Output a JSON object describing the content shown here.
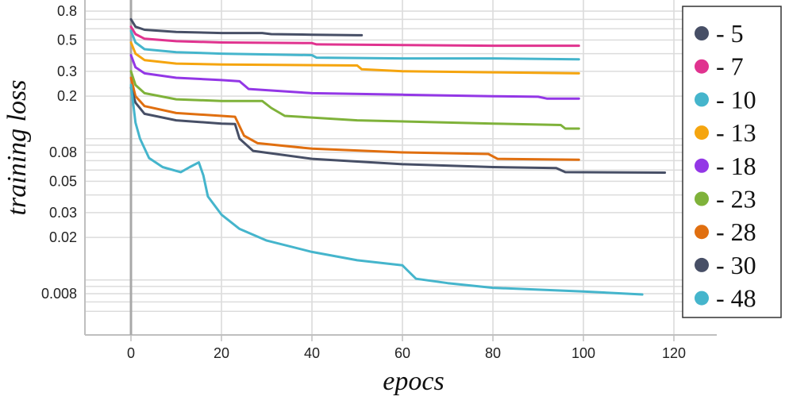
{
  "chart_data": {
    "type": "line",
    "title": "",
    "xlabel": "epocs",
    "ylabel": "training loss",
    "xlim": [
      -10,
      128
    ],
    "ylim": [
      0.005,
      0.85
    ],
    "y_scale": "log",
    "grid": true,
    "legend_placement": "right",
    "x_ticks": [
      {
        "value": 0,
        "label": "0"
      },
      {
        "value": 20,
        "label": "20"
      },
      {
        "value": 40,
        "label": "40"
      },
      {
        "value": 60,
        "label": "60"
      },
      {
        "value": 80,
        "label": "80"
      },
      {
        "value": 100,
        "label": "100"
      },
      {
        "value": 120,
        "label": "120"
      }
    ],
    "y_ticks": [
      {
        "value": 0.8,
        "label": "0.8"
      },
      {
        "value": 0.5,
        "label": "0.5"
      },
      {
        "value": 0.3,
        "label": "0.3"
      },
      {
        "value": 0.2,
        "label": "0.2"
      },
      {
        "value": 0.08,
        "label": "0.08"
      },
      {
        "value": 0.05,
        "label": "0.05"
      },
      {
        "value": 0.03,
        "label": "0.03"
      },
      {
        "value": 0.02,
        "label": "0.02"
      },
      {
        "value": 0.008,
        "label": "0.008"
      }
    ],
    "series": [
      {
        "name": "- 5",
        "color": "#474f66",
        "points": [
          [
            0,
            0.7
          ],
          [
            1,
            0.62
          ],
          [
            3,
            0.59
          ],
          [
            10,
            0.57
          ],
          [
            20,
            0.56
          ],
          [
            29,
            0.56
          ],
          [
            31,
            0.55
          ],
          [
            40,
            0.545
          ],
          [
            50,
            0.54
          ],
          [
            51,
            0.54
          ]
        ]
      },
      {
        "name": "- 7",
        "color": "#e0338f",
        "points": [
          [
            0,
            0.62
          ],
          [
            1,
            0.55
          ],
          [
            3,
            0.51
          ],
          [
            10,
            0.49
          ],
          [
            20,
            0.48
          ],
          [
            40,
            0.475
          ],
          [
            41,
            0.465
          ],
          [
            60,
            0.46
          ],
          [
            80,
            0.455
          ],
          [
            99,
            0.455
          ]
        ]
      },
      {
        "name": "- 10",
        "color": "#45b5cc",
        "points": [
          [
            0,
            0.58
          ],
          [
            1,
            0.48
          ],
          [
            3,
            0.43
          ],
          [
            10,
            0.41
          ],
          [
            20,
            0.4
          ],
          [
            40,
            0.39
          ],
          [
            41,
            0.375
          ],
          [
            60,
            0.37
          ],
          [
            80,
            0.37
          ],
          [
            99,
            0.365
          ]
        ]
      },
      {
        "name": "- 13",
        "color": "#f5a50f",
        "points": [
          [
            0,
            0.48
          ],
          [
            1,
            0.4
          ],
          [
            3,
            0.36
          ],
          [
            10,
            0.34
          ],
          [
            20,
            0.335
          ],
          [
            50,
            0.33
          ],
          [
            51,
            0.31
          ],
          [
            60,
            0.3
          ],
          [
            80,
            0.295
          ],
          [
            99,
            0.29
          ]
        ]
      },
      {
        "name": "- 18",
        "color": "#9337e6",
        "points": [
          [
            0,
            0.39
          ],
          [
            1,
            0.32
          ],
          [
            3,
            0.29
          ],
          [
            10,
            0.27
          ],
          [
            20,
            0.26
          ],
          [
            24,
            0.255
          ],
          [
            26,
            0.225
          ],
          [
            40,
            0.21
          ],
          [
            60,
            0.205
          ],
          [
            80,
            0.2
          ],
          [
            90,
            0.198
          ],
          [
            92,
            0.192
          ],
          [
            99,
            0.192
          ]
        ]
      },
      {
        "name": "- 23",
        "color": "#7fb23a",
        "points": [
          [
            0,
            0.3
          ],
          [
            1,
            0.24
          ],
          [
            3,
            0.21
          ],
          [
            10,
            0.19
          ],
          [
            20,
            0.185
          ],
          [
            29,
            0.185
          ],
          [
            31,
            0.165
          ],
          [
            34,
            0.145
          ],
          [
            50,
            0.135
          ],
          [
            80,
            0.128
          ],
          [
            95,
            0.125
          ],
          [
            96,
            0.118
          ],
          [
            99,
            0.118
          ]
        ]
      },
      {
        "name": "- 28",
        "color": "#e06f10",
        "points": [
          [
            0,
            0.27
          ],
          [
            1,
            0.2
          ],
          [
            3,
            0.17
          ],
          [
            10,
            0.152
          ],
          [
            20,
            0.145
          ],
          [
            23,
            0.143
          ],
          [
            25,
            0.105
          ],
          [
            28,
            0.093
          ],
          [
            40,
            0.085
          ],
          [
            60,
            0.08
          ],
          [
            79,
            0.078
          ],
          [
            81,
            0.072
          ],
          [
            99,
            0.071
          ]
        ]
      },
      {
        "name": "- 30",
        "color": "#474f66",
        "points": [
          [
            0,
            0.23
          ],
          [
            1,
            0.18
          ],
          [
            3,
            0.15
          ],
          [
            10,
            0.135
          ],
          [
            20,
            0.128
          ],
          [
            23,
            0.127
          ],
          [
            24,
            0.1
          ],
          [
            27,
            0.082
          ],
          [
            40,
            0.072
          ],
          [
            60,
            0.066
          ],
          [
            80,
            0.063
          ],
          [
            94,
            0.062
          ],
          [
            96,
            0.058
          ],
          [
            118,
            0.0575
          ]
        ]
      },
      {
        "name": "- 48",
        "color": "#45b5cc",
        "points": [
          [
            0,
            0.24
          ],
          [
            1,
            0.13
          ],
          [
            2,
            0.1
          ],
          [
            4,
            0.073
          ],
          [
            7,
            0.063
          ],
          [
            11,
            0.058
          ],
          [
            13,
            0.063
          ],
          [
            15,
            0.068
          ],
          [
            16,
            0.055
          ],
          [
            17,
            0.039
          ],
          [
            20,
            0.029
          ],
          [
            24,
            0.023
          ],
          [
            30,
            0.019
          ],
          [
            40,
            0.0158
          ],
          [
            50,
            0.0138
          ],
          [
            60,
            0.0127
          ],
          [
            61,
            0.0118
          ],
          [
            63,
            0.0102
          ],
          [
            70,
            0.0095
          ],
          [
            80,
            0.0088
          ],
          [
            100,
            0.0083
          ],
          [
            113,
            0.0079
          ]
        ]
      }
    ]
  }
}
